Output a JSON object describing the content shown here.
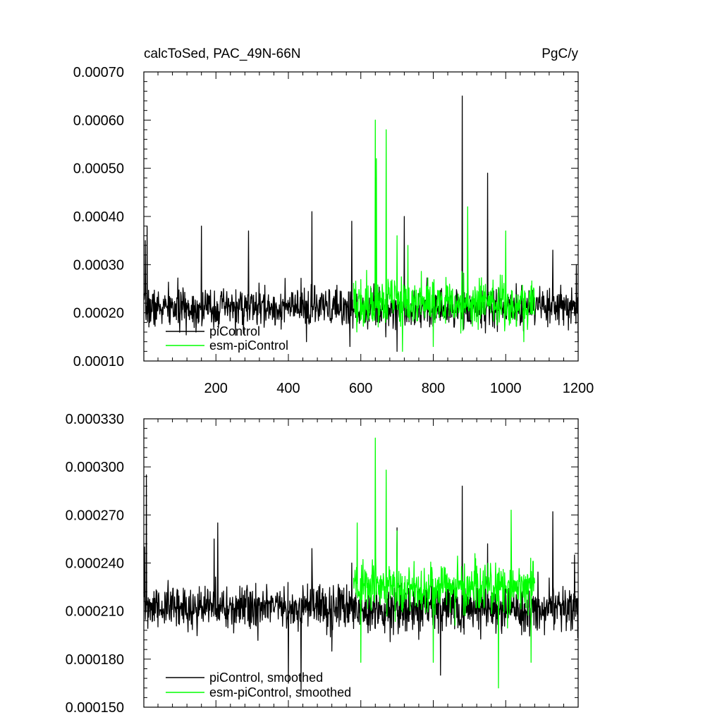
{
  "chart_data": [
    {
      "type": "line",
      "title_left": "calcToSed, PAC_49N-66N",
      "title_right": "PgC/y",
      "xlabel": "",
      "ylabel": "",
      "xlim": [
        1,
        1200
      ],
      "ylim": [
        0.0001,
        0.0007
      ],
      "xticks": [
        200,
        400,
        600,
        800,
        1000,
        1200
      ],
      "xtick_labels": [
        "200",
        "400",
        "600",
        "800",
        "1000",
        "1200"
      ],
      "yticks": [
        0.0001,
        0.0002,
        0.0003,
        0.0004,
        0.0005,
        0.0006,
        0.0007
      ],
      "ytick_labels": [
        "0.00010",
        "0.00020",
        "0.00030",
        "0.00040",
        "0.00050",
        "0.00060",
        "0.00070"
      ],
      "grid": false,
      "legend": "bottom-left",
      "series": [
        {
          "name": "piControl",
          "color": "#000000",
          "x_range": [
            1,
            1200
          ],
          "baseline": 0.00021,
          "noise": 4e-05,
          "seed": 7,
          "peaks": [
            [
              5,
              0.00035
            ],
            [
              10,
              0.00038
            ],
            [
              160,
              0.00038
            ],
            [
              290,
              0.00037
            ],
            [
              465,
              0.00041
            ],
            [
              575,
              0.00039
            ],
            [
              720,
              0.0004
            ],
            [
              880,
              0.00065
            ],
            [
              950,
              0.00049
            ],
            [
              1130,
              0.00033
            ],
            [
              1195,
              0.0003
            ]
          ],
          "troughs": [
            [
              450,
              0.00014
            ],
            [
              570,
              0.00013
            ],
            [
              700,
              0.00012
            ],
            [
              1200,
              0.00014
            ]
          ]
        },
        {
          "name": "esm-piControl",
          "color": "#00ff00",
          "x_range": [
            580,
            1080
          ],
          "baseline": 0.00022,
          "noise": 5e-05,
          "seed": 19,
          "peaks": [
            [
              640,
              0.0006
            ],
            [
              643,
              0.00052
            ],
            [
              670,
              0.00058
            ],
            [
              700,
              0.00036
            ],
            [
              730,
              0.00034
            ],
            [
              800,
              0.00037
            ],
            [
              895,
              0.00042
            ],
            [
              1000,
              0.00037
            ]
          ],
          "troughs": [
            [
              715,
              0.00012
            ],
            [
              800,
              0.00013
            ],
            [
              1050,
              0.00014
            ]
          ]
        }
      ]
    },
    {
      "type": "line",
      "xlabel": "",
      "ylabel": "",
      "xlim": [
        1,
        1200
      ],
      "ylim": [
        0.00015,
        0.00033
      ],
      "xticks": [
        200,
        400,
        600,
        800,
        1000,
        1200
      ],
      "yticks": [
        0.00015,
        0.00018,
        0.00021,
        0.00024,
        0.00027,
        0.0003,
        0.00033
      ],
      "ytick_labels": [
        "0.000150",
        "0.000180",
        "0.000210",
        "0.000240",
        "0.000270",
        "0.000300",
        "0.000330"
      ],
      "grid": false,
      "legend": "bottom-left",
      "series": [
        {
          "name": "piControl, smoothed",
          "color": "#000000",
          "x_range": [
            1,
            1200
          ],
          "baseline": 0.000212,
          "noise": 1.4e-05,
          "seed": 31,
          "peaks": [
            [
              3,
              0.00025
            ],
            [
              8,
              0.000295
            ],
            [
              195,
              0.000255
            ],
            [
              205,
              0.000265
            ],
            [
              465,
              0.000249
            ],
            [
              575,
              0.00024
            ],
            [
              700,
              0.000262
            ],
            [
              880,
              0.000288
            ],
            [
              950,
              0.000252
            ],
            [
              1130,
              0.000272
            ],
            [
              1190,
              0.000245
            ]
          ],
          "troughs": [
            [
              400,
              0.000165
            ],
            [
              435,
              0.00016
            ],
            [
              520,
              0.000185
            ],
            [
              820,
              0.00017
            ],
            [
              1200,
              0.0002
            ]
          ]
        },
        {
          "name": "esm-piControl, smoothed",
          "color": "#00ff00",
          "x_range": [
            580,
            1080
          ],
          "baseline": 0.000225,
          "noise": 1.6e-05,
          "seed": 43,
          "peaks": [
            [
              590,
              0.000265
            ],
            [
              640,
              0.000318
            ],
            [
              670,
              0.000298
            ],
            [
              700,
              0.00026
            ],
            [
              1015,
              0.000273
            ]
          ],
          "troughs": [
            [
              600,
              0.000178
            ],
            [
              800,
              0.000178
            ],
            [
              980,
              0.000162
            ],
            [
              1070,
              0.000178
            ]
          ]
        }
      ]
    }
  ]
}
